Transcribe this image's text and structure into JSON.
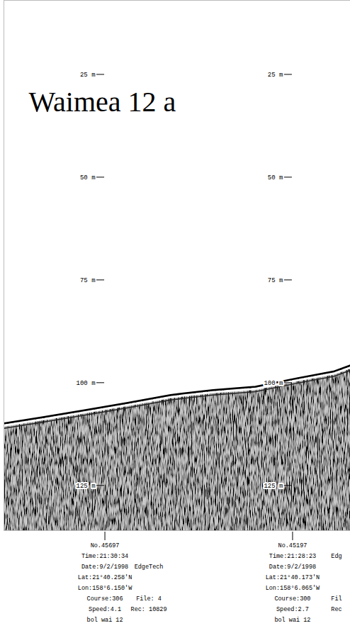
{
  "chart_data": {
    "type": "area",
    "title": "Waimea 12 a",
    "x": [
      45967,
      45863,
      45750,
      45637,
      45523,
      45410,
      45297,
      45184,
      45089,
      45044
    ],
    "values": [
      109.8,
      108.3,
      106.6,
      104.8,
      102.9,
      101.7,
      100.9,
      98.8,
      97.2,
      95.7
    ],
    "xlim": [
      45967,
      45044
    ],
    "ylim": [
      6.9,
      135.9
    ],
    "yticks": [
      {
        "value": 25,
        "label": "25 m"
      },
      {
        "value": 50,
        "label": "50 m"
      },
      {
        "value": 75,
        "label": "75 m"
      },
      {
        "value": 100,
        "label": "100 m"
      },
      {
        "value": 125,
        "label": "125 m"
      }
    ],
    "tick_labels": "y",
    "annotations": [
      {
        "x": 45697,
        "text": [
          "No.45697",
          "Time:21:30:34",
          "Date:9/2/1998",
          "Lat:21°40.258'N",
          "Lon:158°6.150'W",
          "Course:306",
          "Speed:4.1",
          "bol wai 12"
        ],
        "text2": [
          null,
          null,
          "EdgeTech",
          null,
          null,
          "File: 4",
          "Rec: 10829",
          null
        ]
      },
      {
        "x": 45197,
        "text": [
          "No.45197",
          "Time:21:28:23",
          "Date:9/2/1998",
          "Lat:21°40.173'N",
          "Lon:158°6.065'W",
          "Course:300",
          "Speed:2.7",
          "bol wai 12"
        ],
        "text2": [
          null,
          "Edg",
          null,
          null,
          null,
          "Fil",
          "Rec",
          null
        ]
      }
    ]
  }
}
